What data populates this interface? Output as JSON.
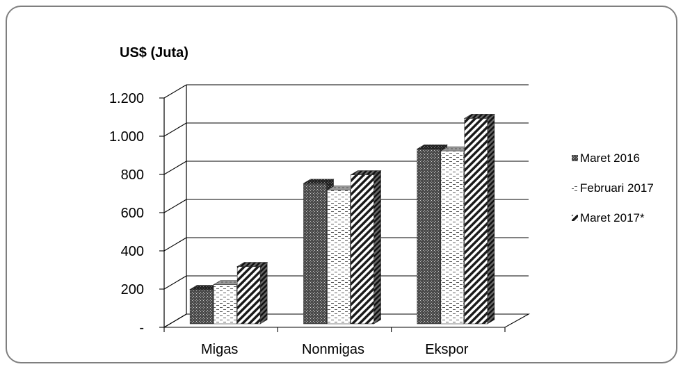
{
  "chart_data": {
    "type": "bar",
    "unit_label": "US$ (Juta)",
    "categories": [
      "Migas",
      "Nonmigas",
      "Ekspor"
    ],
    "series": [
      {
        "name": "Maret 2016",
        "values": [
          180,
          735,
          915
        ],
        "pattern": "crosshatch"
      },
      {
        "name": "Februari 2017",
        "values": [
          205,
          700,
          905
        ],
        "pattern": "dashes"
      },
      {
        "name": "Maret 2017*",
        "values": [
          300,
          780,
          1075
        ],
        "pattern": "diagonal"
      }
    ],
    "ylim": [
      0,
      1200
    ],
    "yticks": [
      {
        "value": 0,
        "label": "-"
      },
      {
        "value": 200,
        "label": "200"
      },
      {
        "value": 400,
        "label": "400"
      },
      {
        "value": 600,
        "label": "600"
      },
      {
        "value": 800,
        "label": "800"
      },
      {
        "value": 1000,
        "label": "1.000"
      },
      {
        "value": 1200,
        "label": "1.200"
      }
    ],
    "grid": true,
    "legend": "right",
    "style": "3d-clustered-column"
  }
}
